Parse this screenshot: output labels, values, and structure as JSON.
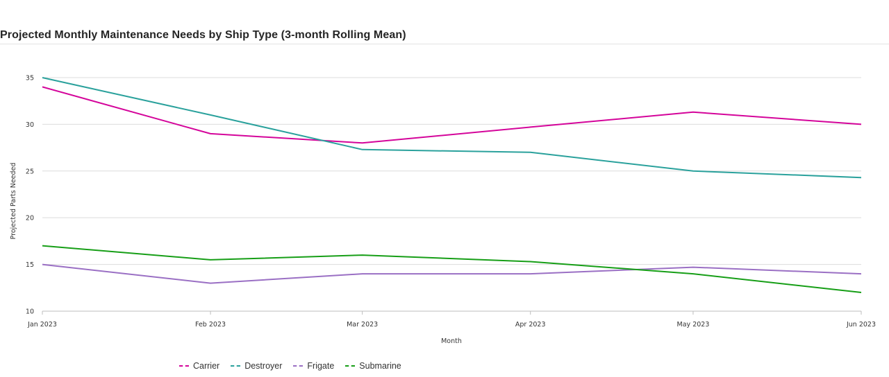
{
  "chart_data": {
    "type": "line",
    "title": "Projected Monthly Maintenance Needs by Ship Type (3-month Rolling Mean)",
    "xlabel": "Month",
    "ylabel": "Projected Parts Needed",
    "categories": [
      "Jan 2023",
      "Feb 2023",
      "Mar 2023",
      "Apr 2023",
      "May 2023",
      "Jun 2023"
    ],
    "x_dates": [
      "2023-01-01",
      "2023-02-01",
      "2023-03-01",
      "2023-04-01",
      "2023-05-01",
      "2023-06-01"
    ],
    "ylim": [
      10,
      37
    ],
    "yticks": [
      10,
      15,
      20,
      25,
      30,
      35
    ],
    "grid": true,
    "legend": "bottom",
    "series": [
      {
        "name": "Carrier",
        "color": "#d4049a",
        "values": [
          34,
          29,
          28,
          29.7,
          31.3,
          30
        ]
      },
      {
        "name": "Destroyer",
        "color": "#2aa19c",
        "values": [
          35,
          31,
          27.3,
          27,
          25,
          24.3
        ]
      },
      {
        "name": "Frigate",
        "color": "#9a6fc4",
        "values": [
          15,
          13,
          14,
          14,
          14.7,
          14
        ]
      },
      {
        "name": "Submarine",
        "color": "#169e16",
        "values": [
          17,
          15.5,
          16,
          15.3,
          14,
          12
        ]
      }
    ]
  }
}
